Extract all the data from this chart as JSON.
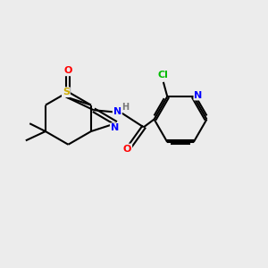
{
  "background_color": "#ececec",
  "bond_color": "#000000",
  "atom_colors": {
    "O": "#ff0000",
    "N": "#0000ff",
    "S": "#ccaa00",
    "Cl": "#00bb00",
    "H": "#777777",
    "C": "#000000"
  },
  "figsize": [
    3.0,
    3.0
  ],
  "dpi": 100
}
